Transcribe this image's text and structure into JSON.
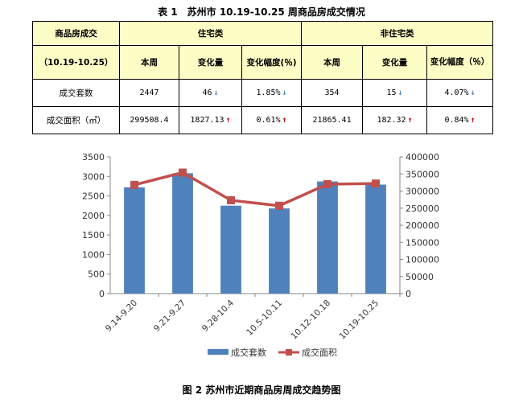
{
  "table_title": "表 1　苏州市 10.19-10.25 周商品房成交情况",
  "table": {
    "corner_top": "商品房成交",
    "corner_bottom": "（10.19-10.25）",
    "group_residential": "住宅类",
    "group_nonresidential": "非住宅类",
    "col_week": "本周",
    "col_change": "变化量",
    "col_pct": "变化幅度(％)",
    "col_pct_wrapped": "变化幅度（％）",
    "rows": [
      {
        "label": "成交套数",
        "res_week": "2447",
        "res_change": "46",
        "res_change_dir": "↓",
        "res_pct": "1.85%",
        "res_pct_dir": "↓",
        "non_week": "354",
        "non_change": "15",
        "non_change_dir": "↓",
        "non_pct": "4.07%",
        "non_pct_dir": "↓"
      },
      {
        "label": "成交面积（㎡）",
        "res_week": "299508.4",
        "res_change": "1827.13",
        "res_change_dir": "↑",
        "res_pct": "0.61%",
        "res_pct_dir": "↑",
        "non_week": "21865.41",
        "non_change": "182.32",
        "non_change_dir": "↑",
        "non_pct": "0.84%",
        "non_pct_dir": "↑"
      }
    ]
  },
  "chart_data": {
    "type": "bar+line",
    "categories": [
      "9.14-9.20",
      "9.21-9.27",
      "9.28-10.4",
      "10.5-10.11",
      "10.12-10.18",
      "10.19-10.25"
    ],
    "series": [
      {
        "name": "成交套数",
        "type": "bar",
        "axis": "left",
        "color": "#4f81bd",
        "values": [
          2720,
          3080,
          2250,
          2180,
          2870,
          2790
        ]
      },
      {
        "name": "成交面积",
        "type": "line",
        "axis": "right",
        "color": "#c0504d",
        "values": [
          318000,
          354000,
          273000,
          257000,
          320000,
          322000
        ]
      }
    ],
    "left_axis": {
      "min": 0,
      "max": 3500,
      "step": 500,
      "ticks": [
        "0",
        "500",
        "1000",
        "1500",
        "2000",
        "2500",
        "3000",
        "3500"
      ]
    },
    "right_axis": {
      "min": 0,
      "max": 400000,
      "step": 50000,
      "ticks": [
        "0",
        "50000",
        "100000",
        "150000",
        "200000",
        "250000",
        "300000",
        "350000",
        "400000"
      ]
    },
    "grid": false,
    "legend": "bottom"
  },
  "figure_caption": "图 2  苏州市近期商品房周成交趋势图"
}
